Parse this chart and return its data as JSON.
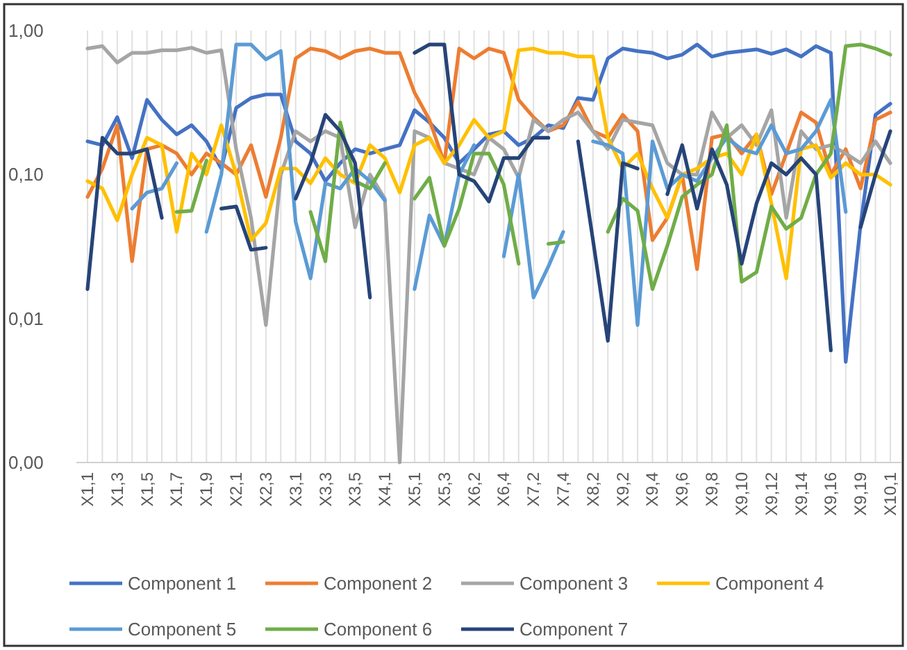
{
  "chart_data": {
    "type": "line",
    "categories": [
      "X1,1",
      null,
      "X1,3",
      null,
      "X1,5",
      null,
      "X1,7",
      null,
      "X1,9",
      null,
      "X2,1",
      null,
      "X2,3",
      null,
      "X3,1",
      null,
      "X3,3",
      null,
      "X3,5",
      null,
      "X4,1",
      null,
      "X5,1",
      null,
      "X5,3",
      null,
      "X6,2",
      null,
      "X6,4",
      null,
      "X7,2",
      null,
      "X7,4",
      null,
      "X8,2",
      null,
      "X9,2",
      null,
      "X9,4",
      null,
      "X9,6",
      null,
      "X9,8",
      null,
      "X9,10",
      null,
      "X9,12",
      null,
      "X9,14",
      null,
      "X9,16",
      null,
      "X9,19",
      null,
      "X10,1"
    ],
    "series": [
      {
        "name": "Component 1",
        "color": "#4472c4",
        "values": [
          0.17,
          0.16,
          0.25,
          0.13,
          0.33,
          0.24,
          0.19,
          0.22,
          0.17,
          0.11,
          0.29,
          0.34,
          0.36,
          0.36,
          0.17,
          0.14,
          0.09,
          0.12,
          0.15,
          0.14,
          0.15,
          0.16,
          0.28,
          0.23,
          0.18,
          0.12,
          0.15,
          0.19,
          0.2,
          0.16,
          0.18,
          0.22,
          0.21,
          0.34,
          0.33,
          0.64,
          0.75,
          0.72,
          0.7,
          0.64,
          0.68,
          0.8,
          0.66,
          0.7,
          0.72,
          0.74,
          0.69,
          0.74,
          0.66,
          0.78,
          0.7,
          0.005,
          0.045,
          0.26,
          0.31
        ]
      },
      {
        "name": "Component 2",
        "color": "#ed7d31",
        "values": [
          0.07,
          0.11,
          0.22,
          0.025,
          0.15,
          0.16,
          0.14,
          0.1,
          0.14,
          0.12,
          0.1,
          0.16,
          0.07,
          0.18,
          0.64,
          0.75,
          0.72,
          0.64,
          0.72,
          0.75,
          0.7,
          0.7,
          0.37,
          0.24,
          0.12,
          0.75,
          0.64,
          0.75,
          0.7,
          0.33,
          0.25,
          0.2,
          0.22,
          0.32,
          0.2,
          0.18,
          0.26,
          0.2,
          0.035,
          0.05,
          0.1,
          0.022,
          0.18,
          0.19,
          0.14,
          0.19,
          0.073,
          0.14,
          0.27,
          0.23,
          0.1,
          0.15,
          0.08,
          0.24,
          0.27
        ]
      },
      {
        "name": "Component 3",
        "color": "#a5a5a5",
        "values": [
          0.75,
          0.78,
          0.6,
          0.7,
          0.7,
          0.73,
          0.73,
          0.76,
          0.7,
          0.73,
          0.15,
          0.05,
          0.009,
          0.1,
          0.2,
          0.17,
          0.2,
          0.18,
          0.043,
          0.1,
          0.068,
          0.001,
          0.2,
          0.18,
          0.12,
          0.11,
          0.1,
          0.18,
          0.15,
          0.095,
          0.24,
          0.2,
          0.24,
          0.27,
          0.2,
          0.15,
          0.24,
          0.23,
          0.22,
          0.12,
          0.1,
          0.1,
          0.27,
          0.18,
          0.22,
          0.16,
          0.28,
          0.05,
          0.2,
          0.15,
          0.16,
          0.14,
          0.12,
          0.17,
          0.12
        ]
      },
      {
        "name": "Component 4",
        "color": "#ffc000",
        "values": [
          0.09,
          0.08,
          0.048,
          0.1,
          0.18,
          0.16,
          0.04,
          0.14,
          0.1,
          0.22,
          0.1,
          0.035,
          0.046,
          0.11,
          0.11,
          0.087,
          0.13,
          0.1,
          0.087,
          0.16,
          0.13,
          0.075,
          0.16,
          0.18,
          0.12,
          0.16,
          0.24,
          0.18,
          0.2,
          0.73,
          0.75,
          0.7,
          0.7,
          0.66,
          0.66,
          0.18,
          0.11,
          0.14,
          0.08,
          0.05,
          0.1,
          0.11,
          0.13,
          0.14,
          0.1,
          0.19,
          0.063,
          0.019,
          0.15,
          0.16,
          0.095,
          0.12,
          0.1,
          0.1,
          0.085
        ]
      },
      {
        "name": "Component 5",
        "color": "#5b9bd5",
        "values": [
          null,
          null,
          null,
          0.058,
          0.075,
          0.08,
          0.12,
          null,
          0.04,
          0.1,
          0.8,
          0.8,
          0.63,
          0.72,
          0.047,
          0.019,
          0.087,
          0.08,
          0.11,
          0.09,
          0.066,
          null,
          0.016,
          0.052,
          0.032,
          0.1,
          0.16,
          null,
          0.027,
          0.1,
          0.014,
          0.023,
          0.04,
          null,
          0.17,
          0.16,
          0.14,
          0.009,
          0.17,
          0.08,
          0.1,
          0.09,
          0.13,
          0.18,
          0.15,
          0.14,
          0.22,
          0.14,
          0.15,
          0.2,
          0.33,
          0.055,
          null,
          null,
          null
        ]
      },
      {
        "name": "Component 6",
        "color": "#70ad47",
        "values": [
          null,
          null,
          null,
          null,
          null,
          null,
          0.055,
          0.056,
          0.125,
          null,
          null,
          null,
          null,
          null,
          null,
          0.055,
          0.025,
          0.23,
          0.09,
          0.08,
          0.12,
          null,
          0.068,
          0.095,
          0.032,
          0.058,
          0.14,
          0.14,
          0.085,
          0.024,
          null,
          0.033,
          0.034,
          null,
          null,
          0.04,
          0.068,
          0.056,
          0.016,
          0.032,
          0.07,
          0.085,
          0.1,
          0.22,
          0.018,
          0.021,
          0.06,
          0.042,
          0.05,
          0.1,
          0.14,
          0.78,
          0.8,
          0.75,
          0.68
        ]
      },
      {
        "name": "Component 7",
        "color": "#264478",
        "values": [
          0.016,
          0.18,
          0.14,
          0.14,
          0.15,
          0.05,
          null,
          null,
          null,
          0.058,
          0.06,
          0.03,
          0.031,
          null,
          0.068,
          0.12,
          0.26,
          0.2,
          0.12,
          0.014,
          null,
          null,
          0.7,
          0.8,
          0.8,
          0.1,
          0.09,
          0.065,
          0.13,
          0.13,
          0.18,
          0.18,
          null,
          0.17,
          0.035,
          0.007,
          0.12,
          0.11,
          null,
          0.073,
          0.16,
          0.058,
          0.15,
          0.085,
          0.024,
          0.063,
          0.12,
          0.1,
          0.13,
          0.1,
          0.006,
          null,
          0.043,
          0.1,
          0.2
        ]
      }
    ],
    "ylim": [
      0.001,
      1
    ],
    "yticks": [
      {
        "value": 0.001,
        "label": "0,00"
      },
      {
        "value": 0.01,
        "label": "0,01"
      },
      {
        "value": 0.1,
        "label": "0,10"
      },
      {
        "value": 1,
        "label": "1,00"
      }
    ],
    "log": true,
    "grid": "x",
    "legend": "bottom"
  }
}
